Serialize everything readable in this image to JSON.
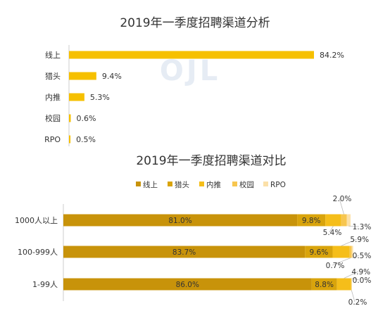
{
  "colors": {
    "online": "#C8930A",
    "headhunter": "#D9A40C",
    "referral": "#F5BE1A",
    "campus": "#F7C64F",
    "rpo": "#FBE0A8",
    "bar_top": "#F6C000",
    "text": "#333333",
    "axis": "#cccccc"
  },
  "chart_data": [
    {
      "type": "bar",
      "orientation": "horizontal",
      "title": "2019年一季度招聘渠道分析",
      "categories": [
        "线上",
        "猎头",
        "内推",
        "校园",
        "RPO"
      ],
      "values": [
        84.2,
        9.4,
        5.3,
        0.6,
        0.5
      ],
      "value_labels": [
        "84.2%",
        "9.4%",
        "5.3%",
        "0.6%",
        "0.5%"
      ],
      "xlim": [
        0,
        100
      ],
      "unit": "%",
      "grid": false
    },
    {
      "type": "bar",
      "orientation": "horizontal",
      "stacked": true,
      "title": "2019年一季度招聘渠道对比",
      "legend_position": "top",
      "categories": [
        "1000人以上",
        "100-999人",
        "1-99人"
      ],
      "xlim": [
        0,
        100
      ],
      "unit": "%",
      "grid": false,
      "series": [
        {
          "name": "线上",
          "values": [
            81.0,
            83.7,
            86.0
          ],
          "labels": [
            "81.0%",
            "83.7%",
            "86.0%"
          ]
        },
        {
          "name": "猎头",
          "values": [
            9.8,
            9.6,
            8.8
          ],
          "labels": [
            "9.8%",
            "9.6%",
            "8.8%"
          ]
        },
        {
          "name": "内推",
          "values": [
            5.4,
            5.9,
            4.9
          ],
          "labels": [
            "5.4%",
            "5.9%",
            "4.9%"
          ]
        },
        {
          "name": "校园",
          "values": [
            2.0,
            0.7,
            0.2
          ],
          "labels": [
            "2.0%",
            "0.7%",
            "0.2%"
          ]
        },
        {
          "name": "RPO",
          "values": [
            1.3,
            0.5,
            0.0
          ],
          "labels": [
            "1.3%",
            "0.5%",
            "0.0%"
          ]
        }
      ]
    }
  ],
  "watermark": "OJL"
}
